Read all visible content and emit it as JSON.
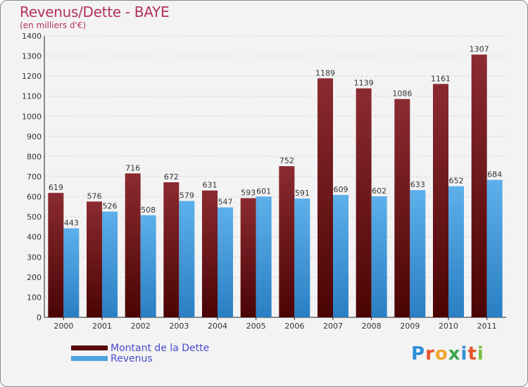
{
  "chart_data": {
    "type": "bar",
    "title": "Revenus/Dette - BAYE",
    "subtitle": "(en milliers d'€)",
    "categories": [
      "2000",
      "2001",
      "2002",
      "2003",
      "2004",
      "2005",
      "2006",
      "2007",
      "2008",
      "2009",
      "2010",
      "2011"
    ],
    "series": [
      {
        "name": "Montant de la Dette",
        "color": "#7a1f23",
        "values": [
          619,
          576,
          716,
          672,
          631,
          593,
          752,
          1189,
          1139,
          1086,
          1161,
          1307
        ]
      },
      {
        "name": "Revenus",
        "color": "#4ea2e0",
        "values": [
          443,
          526,
          508,
          579,
          547,
          601,
          591,
          609,
          602,
          633,
          652,
          684
        ]
      }
    ],
    "ylim": [
      0,
      1400
    ],
    "yticks": [
      0,
      100,
      200,
      300,
      400,
      500,
      600,
      700,
      800,
      900,
      1000,
      1100,
      1200,
      1300,
      1400
    ],
    "grid": true,
    "legend_position": "bottom-left"
  },
  "branding": {
    "logo_text": "Proxiti",
    "logo_colors": [
      "#2f8fd8",
      "#e8542b",
      "#f2a52b",
      "#3aa64a",
      "#2f8fd8",
      "#e8542b",
      "#7ac043"
    ]
  }
}
